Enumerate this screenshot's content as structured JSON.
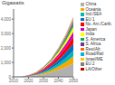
{
  "chart_data": {
    "type": "area",
    "title": "Gigawatts",
    "stacked": true,
    "grid": false,
    "legend": "right",
    "x": [
      2010,
      2015,
      2020,
      2025,
      2030,
      2035,
      2040,
      2045,
      2050
    ],
    "xlim": [
      2010,
      2050
    ],
    "xticks": [
      2010,
      2020,
      2030,
      2040,
      2050
    ],
    "ylim": [
      0,
      4700
    ],
    "yticks": [
      0,
      {
        "value": 1000,
        "label": "1,000"
      },
      {
        "value": 2000,
        "label": "2,000"
      },
      {
        "value": 3000,
        "label": "3,000"
      },
      {
        "value": 4000,
        "label": "4,000"
      }
    ],
    "series": [
      {
        "name": "China",
        "color": "#b0b0b0",
        "values": [
          0.5,
          5,
          35,
          90,
          180,
          310,
          480,
          680,
          920
        ]
      },
      {
        "name": "Oceania",
        "color": "#f5a800",
        "values": [
          0.1,
          2,
          14,
          40,
          85,
          150,
          240,
          360,
          500
        ]
      },
      {
        "name": "Ind./SEA",
        "color": "#00b8b8",
        "values": [
          0.05,
          1,
          9,
          28,
          62,
          112,
          185,
          280,
          400
        ]
      },
      {
        "name": "EU 1",
        "color": "#0070c0",
        "values": [
          0.3,
          4,
          20,
          50,
          100,
          168,
          258,
          370,
          500
        ]
      },
      {
        "name": "No. Am./Carib.",
        "color": "#ff0000",
        "values": [
          0.2,
          3,
          16,
          42,
          86,
          148,
          230,
          335,
          460
        ]
      },
      {
        "name": "Japan",
        "color": "#cc00cc",
        "values": [
          0.15,
          2.5,
          12,
          31,
          64,
          110,
          175,
          258,
          350
        ]
      },
      {
        "name": "India",
        "color": "#ffff00",
        "values": [
          0.05,
          0.5,
          5.5,
          20,
          46,
          88,
          148,
          220,
          310
        ]
      },
      {
        "name": "S. America",
        "color": "#00b050",
        "values": [
          0.02,
          0.3,
          3.5,
          12,
          28,
          56,
          98,
          150,
          215
        ]
      },
      {
        "name": "S. Africa",
        "color": "#7030a0",
        "values": [
          0.01,
          0.1,
          1.8,
          7,
          18,
          37,
          67,
          106,
          156
        ]
      },
      {
        "name": "Rest/Afr.",
        "color": "#ff6600",
        "values": [
          0.01,
          0.1,
          1.2,
          5,
          13,
          27,
          50,
          82,
          124
        ]
      },
      {
        "name": "Road/Rail",
        "color": "#00b0f0",
        "values": [
          0.0,
          0.05,
          0.6,
          2.5,
          7,
          15,
          28,
          47,
          72
        ]
      },
      {
        "name": "Israel/ME",
        "color": "#ffc000",
        "values": [
          0.0,
          0.02,
          0.35,
          1.8,
          5,
          11,
          21,
          36,
          56
        ]
      },
      {
        "name": "EU 2",
        "color": "#808080",
        "values": [
          0.0,
          0.01,
          0.22,
          1.2,
          3.5,
          8,
          16,
          27,
          43
        ]
      },
      {
        "name": "LA/Other",
        "color": "#c00000",
        "values": [
          0.0,
          0.01,
          0.12,
          0.6,
          1.8,
          4.5,
          9,
          16,
          25
        ]
      }
    ]
  }
}
